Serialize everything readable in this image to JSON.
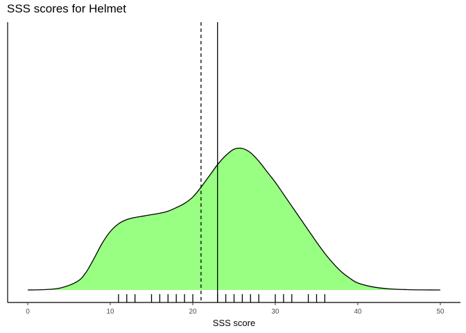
{
  "chart_data": {
    "type": "area",
    "title": "SSS scores for Helmet",
    "xlabel": "SSS score",
    "ylabel": "",
    "xlim": [
      0,
      50
    ],
    "x_ticks": [
      0,
      10,
      20,
      30,
      40,
      50
    ],
    "grid": false,
    "fill_color": "#98ff82",
    "line_color": "#000000",
    "density_curve": {
      "x": [
        0,
        2,
        4,
        6,
        7,
        8,
        9,
        10,
        11,
        12,
        13,
        14,
        15,
        16,
        17,
        18,
        19,
        20,
        21,
        22,
        23,
        24,
        25,
        26,
        27,
        28,
        29,
        30,
        31,
        32,
        33,
        34,
        35,
        36,
        37,
        38,
        39,
        40,
        42,
        44,
        46,
        48,
        50
      ],
      "y": [
        0.0,
        0.0005,
        0.003,
        0.012,
        0.024,
        0.044,
        0.066,
        0.083,
        0.094,
        0.1,
        0.103,
        0.105,
        0.107,
        0.109,
        0.112,
        0.117,
        0.123,
        0.132,
        0.146,
        0.162,
        0.178,
        0.191,
        0.2,
        0.201,
        0.195,
        0.183,
        0.168,
        0.153,
        0.136,
        0.119,
        0.102,
        0.085,
        0.068,
        0.052,
        0.038,
        0.026,
        0.017,
        0.01,
        0.004,
        0.0015,
        0.0005,
        0.0001,
        0.0
      ]
    },
    "rug_values": [
      11,
      12,
      13,
      15,
      16,
      17,
      18,
      19,
      20,
      23,
      24,
      25,
      26,
      27,
      28,
      30,
      31,
      32,
      34,
      35,
      36
    ],
    "reference_lines": [
      {
        "value": 21,
        "style": "dashed"
      },
      {
        "value": 23,
        "style": "solid"
      }
    ]
  }
}
